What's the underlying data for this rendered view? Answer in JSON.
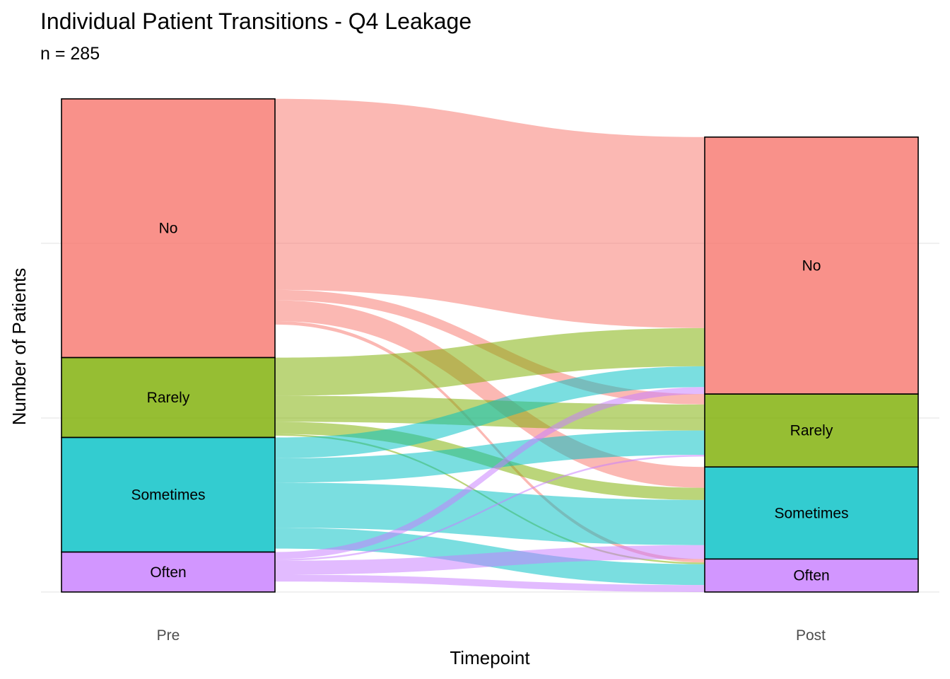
{
  "chart_data": {
    "type": "alluvial",
    "title": "Individual Patient Transitions - Q4 Leakage",
    "subtitle": "n = 285",
    "xlabel": "Timepoint",
    "ylabel": "Number of Patients",
    "x_categories": [
      "Pre",
      "Post"
    ],
    "category_order": [
      "No",
      "Rarely",
      "Sometimes",
      "Often"
    ],
    "colors": {
      "No": "#F8766D",
      "Rarely": "#7CAE00",
      "Sometimes": "#00BFC4",
      "Often": "#C77CFF"
    },
    "y_gridlines": [
      0,
      100,
      200
    ],
    "ylim": [
      0,
      285
    ],
    "strata": {
      "Pre": [
        {
          "label": "No",
          "value": 149
        },
        {
          "label": "Rarely",
          "value": 46
        },
        {
          "label": "Sometimes",
          "value": 66
        },
        {
          "label": "Often",
          "value": 23
        }
      ],
      "Post": [
        {
          "label": "No",
          "value": 148
        },
        {
          "label": "Rarely",
          "value": 42
        },
        {
          "label": "Sometimes",
          "value": 53
        },
        {
          "label": "Often",
          "value": 19
        }
      ]
    },
    "flows": [
      {
        "from": "No",
        "to": "No",
        "value": 110
      },
      {
        "from": "No",
        "to": "Rarely",
        "value": 6
      },
      {
        "from": "No",
        "to": "Sometimes",
        "value": 12
      },
      {
        "from": "No",
        "to": "Often",
        "value": 2
      },
      {
        "from": "Rarely",
        "to": "No",
        "value": 22
      },
      {
        "from": "Rarely",
        "to": "Rarely",
        "value": 15
      },
      {
        "from": "Rarely",
        "to": "Sometimes",
        "value": 7
      },
      {
        "from": "Rarely",
        "to": "Often",
        "value": 1
      },
      {
        "from": "Sometimes",
        "to": "No",
        "value": 12
      },
      {
        "from": "Sometimes",
        "to": "Rarely",
        "value": 14
      },
      {
        "from": "Sometimes",
        "to": "Sometimes",
        "value": 26
      },
      {
        "from": "Sometimes",
        "to": "Often",
        "value": 12
      },
      {
        "from": "Often",
        "to": "No",
        "value": 4
      },
      {
        "from": "Often",
        "to": "Rarely",
        "value": 1
      },
      {
        "from": "Often",
        "to": "Sometimes",
        "value": 8
      },
      {
        "from": "Often",
        "to": "Often",
        "value": 4
      }
    ]
  }
}
